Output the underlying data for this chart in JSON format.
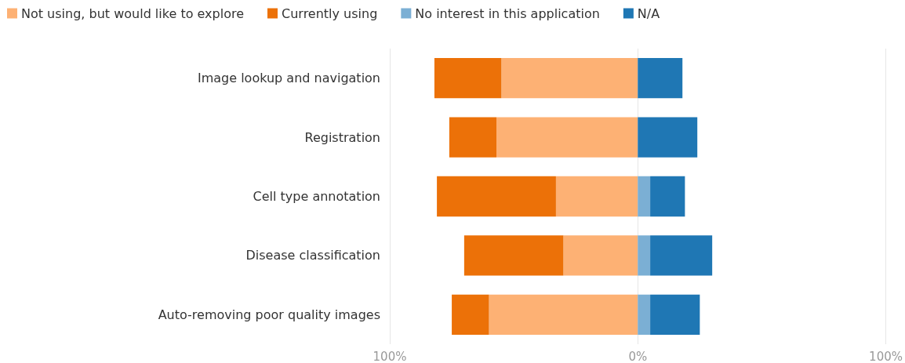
{
  "chart_data": {
    "type": "bar",
    "orientation": "horizontal",
    "stacked": true,
    "categories": [
      "Image lookup and navigation",
      "Registration",
      "Cell type annotation",
      "Disease classification",
      "Auto-removing poor quality images"
    ],
    "series": [
      {
        "name": "Not using, but would like to explore",
        "color": "#fdb174",
        "values": [
          -55,
          -57,
          -33,
          -30,
          -60
        ]
      },
      {
        "name": "Currently using",
        "color": "#ec7108",
        "values": [
          -27,
          -19,
          -48,
          -40,
          -15
        ]
      },
      {
        "name": "No interest in this application",
        "color": "#7bafd4",
        "values": [
          0,
          0,
          5,
          5,
          5
        ]
      },
      {
        "name": "N/A",
        "color": "#1f77b4",
        "values": [
          18,
          24,
          14,
          25,
          20
        ]
      }
    ],
    "xlim": [
      -100,
      100
    ],
    "xticks": [
      {
        "value": -100,
        "label": "100%"
      },
      {
        "value": 0,
        "label": "0%"
      },
      {
        "value": 100,
        "label": "100%"
      }
    ],
    "grid": "x",
    "legend": "top left"
  }
}
